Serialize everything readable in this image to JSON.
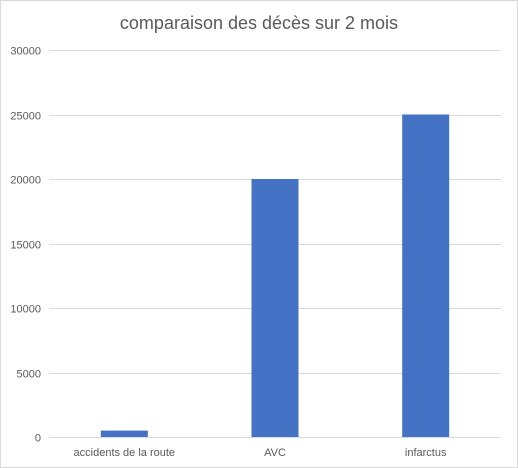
{
  "chart_data": {
    "type": "bar",
    "title": "comparaison des décès sur 2 mois",
    "xlabel": "",
    "ylabel": "",
    "categories": [
      "accidents de la route",
      "AVC",
      "infarctus"
    ],
    "series": [
      {
        "values": [
          500,
          20000,
          25000
        ],
        "color": "#4472c4"
      }
    ],
    "ylim": [
      0,
      30000
    ],
    "yticks": [
      0,
      5000,
      10000,
      15000,
      20000,
      25000,
      30000
    ],
    "grid": true,
    "legend": "none"
  }
}
